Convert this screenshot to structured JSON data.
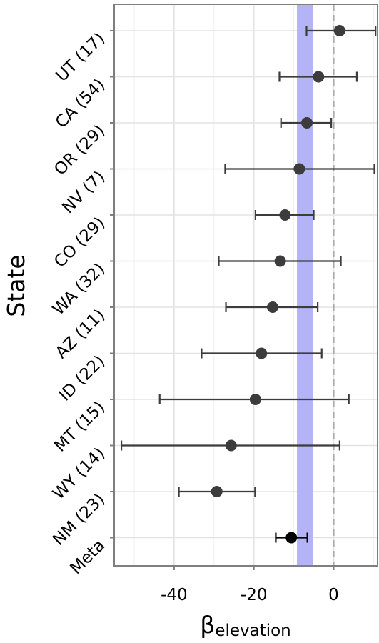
{
  "chart_data": {
    "type": "forest",
    "orientation": "horizontal",
    "ylabel": "State",
    "xlabel": {
      "symbol": "β",
      "subscript": "elevation"
    },
    "xlim": [
      -55,
      11
    ],
    "xticks": [
      -40,
      -20,
      0
    ],
    "xtick_labels": [
      "-40",
      "-20",
      "0"
    ],
    "reference_line": {
      "x": 0,
      "style": "dashed",
      "color": "#aaaaaa"
    },
    "band": {
      "from": -9.2,
      "to": -5.1,
      "color": "#b3b3f5"
    },
    "grid": true,
    "points": [
      {
        "label": "UT (17)",
        "estimate": 1.5,
        "lower": -6.8,
        "upper": 10.5,
        "color": "#3c3c3c"
      },
      {
        "label": "CA (54)",
        "estimate": -3.8,
        "lower": -13.6,
        "upper": 5.8,
        "color": "#3c3c3c"
      },
      {
        "label": "OR (29)",
        "estimate": -6.7,
        "lower": -13.2,
        "upper": -0.6,
        "color": "#3c3c3c"
      },
      {
        "label": "NV (7)",
        "estimate": -8.6,
        "lower": -27.2,
        "upper": 10.2,
        "color": "#3c3c3c"
      },
      {
        "label": "CO (29)",
        "estimate": -12.2,
        "lower": -19.6,
        "upper": -5.0,
        "color": "#3c3c3c"
      },
      {
        "label": "WA (32)",
        "estimate": -13.4,
        "lower": -28.8,
        "upper": 1.8,
        "color": "#3c3c3c"
      },
      {
        "label": "AZ (11)",
        "estimate": -15.3,
        "lower": -27.0,
        "upper": -4.0,
        "color": "#3c3c3c"
      },
      {
        "label": "ID (22)",
        "estimate": -18.1,
        "lower": -33.1,
        "upper": -3.0,
        "color": "#3c3c3c"
      },
      {
        "label": "MT (15)",
        "estimate": -19.6,
        "lower": -43.6,
        "upper": 3.8,
        "color": "#3c3c3c"
      },
      {
        "label": "WY (14)",
        "estimate": -25.7,
        "lower": -53.2,
        "upper": 1.5,
        "color": "#3c3c3c"
      },
      {
        "label": "NM (23)",
        "estimate": -29.3,
        "lower": -38.8,
        "upper": -19.7,
        "color": "#3c3c3c"
      },
      {
        "label": "Meta",
        "estimate": -10.6,
        "lower": -14.5,
        "upper": -6.6,
        "color": "#000000"
      }
    ]
  }
}
